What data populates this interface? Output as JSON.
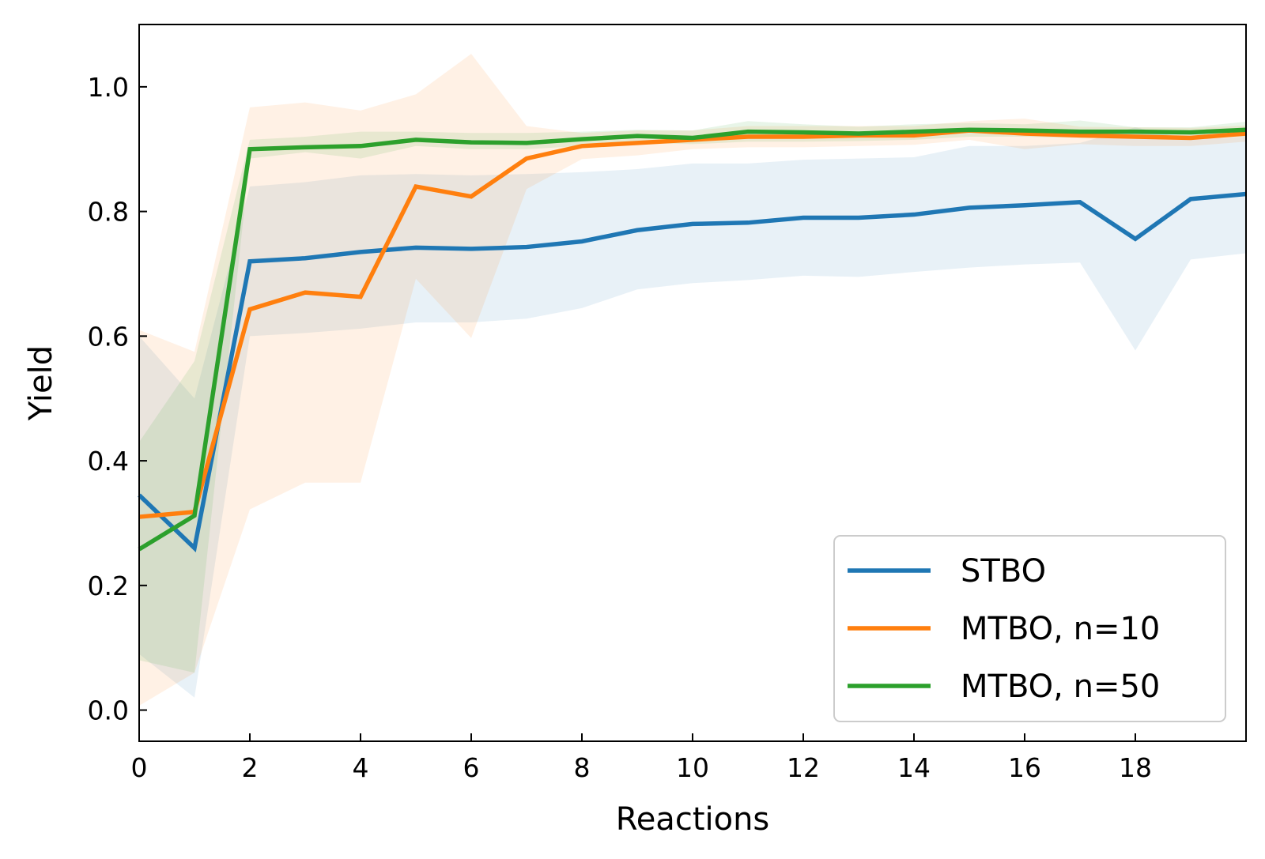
{
  "chart_data": {
    "type": "line",
    "title": "",
    "xlabel": "Reactions",
    "ylabel": "Yield",
    "xlim": [
      0,
      20
    ],
    "ylim": [
      -0.05,
      1.1
    ],
    "xticks": [
      0,
      2,
      4,
      6,
      8,
      10,
      12,
      14,
      16,
      18
    ],
    "xtick_labels": [
      "0",
      "2",
      "4",
      "6",
      "8",
      "10",
      "12",
      "14",
      "16",
      "18"
    ],
    "yticks": [
      0.0,
      0.2,
      0.4,
      0.6,
      0.8,
      1.0
    ],
    "ytick_labels": [
      "0.0",
      "0.2",
      "0.4",
      "0.6",
      "0.8",
      "1.0"
    ],
    "grid": false,
    "legend_position": "bottom-right",
    "x": [
      0,
      1,
      2,
      3,
      4,
      5,
      6,
      7,
      8,
      9,
      10,
      11,
      12,
      13,
      14,
      15,
      16,
      17,
      18,
      19,
      20
    ],
    "series": [
      {
        "name": "STBO",
        "color": "#1f77b4",
        "values": [
          0.345,
          0.26,
          0.72,
          0.725,
          0.735,
          0.742,
          0.74,
          0.743,
          0.752,
          0.77,
          0.78,
          0.782,
          0.79,
          0.79,
          0.795,
          0.806,
          0.81,
          0.815,
          0.756,
          0.82,
          0.828
        ],
        "upper": [
          0.6,
          0.5,
          0.84,
          0.847,
          0.858,
          0.86,
          0.858,
          0.86,
          0.863,
          0.868,
          0.877,
          0.877,
          0.883,
          0.885,
          0.887,
          0.905,
          0.905,
          0.91,
          0.935,
          0.915,
          0.92
        ],
        "lower": [
          0.09,
          0.02,
          0.6,
          0.605,
          0.612,
          0.622,
          0.622,
          0.628,
          0.645,
          0.675,
          0.685,
          0.69,
          0.697,
          0.695,
          0.703,
          0.71,
          0.715,
          0.718,
          0.577,
          0.723,
          0.733
        ]
      },
      {
        "name": "MTBO, n=10",
        "color": "#ff7f0e",
        "values": [
          0.31,
          0.318,
          0.643,
          0.67,
          0.663,
          0.84,
          0.824,
          0.885,
          0.905,
          0.91,
          0.915,
          0.92,
          0.92,
          0.922,
          0.922,
          0.93,
          0.925,
          0.922,
          0.92,
          0.918,
          0.925
        ],
        "upper": [
          0.61,
          0.575,
          0.967,
          0.975,
          0.962,
          0.988,
          1.053,
          0.937,
          0.926,
          0.93,
          0.93,
          0.937,
          0.937,
          0.937,
          0.937,
          0.945,
          0.949,
          0.936,
          0.935,
          0.934,
          0.938
        ],
        "lower": [
          0.007,
          0.06,
          0.322,
          0.365,
          0.365,
          0.692,
          0.597,
          0.836,
          0.884,
          0.89,
          0.9,
          0.903,
          0.903,
          0.905,
          0.907,
          0.915,
          0.9,
          0.908,
          0.905,
          0.905,
          0.912
        ]
      },
      {
        "name": "MTBO, n=50",
        "color": "#2ca02c",
        "values": [
          0.258,
          0.312,
          0.9,
          0.903,
          0.905,
          0.915,
          0.911,
          0.91,
          0.916,
          0.921,
          0.918,
          0.928,
          0.927,
          0.925,
          0.928,
          0.931,
          0.93,
          0.928,
          0.928,
          0.927,
          0.931
        ],
        "upper": [
          0.43,
          0.56,
          0.915,
          0.92,
          0.928,
          0.928,
          0.926,
          0.926,
          0.928,
          0.931,
          0.93,
          0.945,
          0.94,
          0.936,
          0.94,
          0.942,
          0.94,
          0.946,
          0.935,
          0.935,
          0.944
        ],
        "lower": [
          0.08,
          0.06,
          0.885,
          0.895,
          0.885,
          0.905,
          0.9,
          0.9,
          0.905,
          0.91,
          0.908,
          0.912,
          0.912,
          0.913,
          0.915,
          0.92,
          0.92,
          0.918,
          0.918,
          0.918,
          0.92
        ]
      }
    ]
  }
}
